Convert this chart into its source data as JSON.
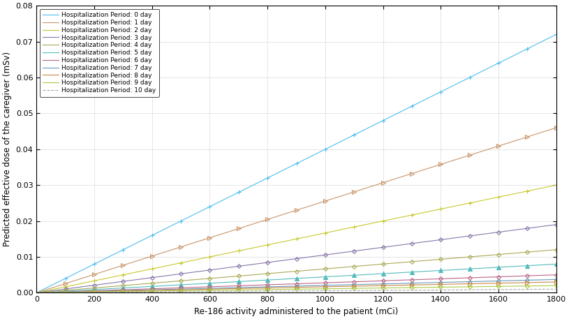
{
  "x_pts": [
    100,
    200,
    300,
    400,
    500,
    600,
    700,
    800,
    900,
    1000,
    1100,
    1200,
    1300,
    1400,
    1500,
    1600,
    1700,
    1800
  ],
  "labels": [
    "Hospitalization Period: 0 day",
    "Hospitalization Period: 1 day",
    "Hospitalization Period: 2 day",
    "Hospitalization Period: 3 day",
    "Hospitalization Period: 4 day",
    "Hospitalization Period: 5 day",
    "Hospitalization Period: 6 day",
    "Hospitalization Period: 7 day",
    "Hospitalization Period: 8 day",
    "Hospitalization Period: 9 day",
    "Hospitalization Period: 10 day"
  ],
  "colors": [
    "#5BBFBF",
    "#C8956A",
    "#C8C840",
    "#8877AA",
    "#AAAA66",
    "#55BBBB",
    "#BB6688",
    "#6699BB",
    "#CC8855",
    "#AACC44",
    "#AAAAAA"
  ],
  "linestyles": [
    "-",
    "-",
    "-",
    "-",
    "-",
    "-",
    "-",
    "-",
    "-",
    "-",
    "--"
  ],
  "markers": [
    "p",
    ">",
    "p",
    "D",
    "D",
    "^",
    "D",
    "D",
    ">",
    "D",
    "none"
  ],
  "slopes": [
    4e-05,
    2.556e-05,
    1.667e-05,
    1.056e-05,
    6.67e-06,
    4.44e-06,
    2.78e-06,
    2.06e-06,
    1.67e-06,
    1.11e-06,
    5.56e-07
  ],
  "intercepts": [
    0.0,
    0.0,
    0.0,
    0.0,
    0.0,
    0.0,
    0.0,
    0.0,
    0.0,
    0.0,
    0.0
  ],
  "xlabel": "Re-186 activity administered to the patient (mCi)",
  "ylabel": "Predicted effective dose of the caregiver (mSv)",
  "ylim": [
    0,
    0.08
  ],
  "xlim": [
    0,
    1800
  ],
  "xticks": [
    0,
    200,
    400,
    600,
    800,
    1000,
    1200,
    1400,
    1600,
    1800
  ],
  "yticks": [
    0,
    0.01,
    0.02,
    0.03,
    0.04,
    0.05,
    0.06,
    0.07,
    0.08
  ]
}
